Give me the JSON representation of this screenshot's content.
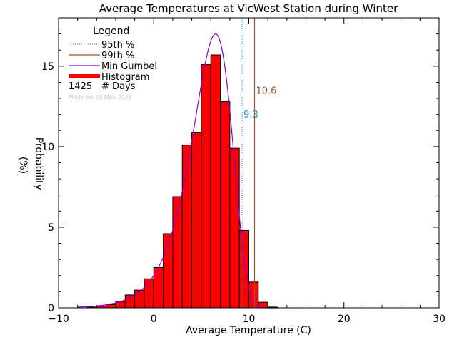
{
  "chart_data": {
    "type": "bar",
    "title": "Average Temperatures at VicWest Station during Winter",
    "xlabel": "Average Temperature (C)",
    "ylabel": "Probability\n(%)",
    "xlim": [
      -10,
      30
    ],
    "ylim": [
      0,
      18
    ],
    "xticks": [
      -10,
      0,
      10,
      20,
      30
    ],
    "yticks": [
      0,
      5,
      10,
      15
    ],
    "bin_width": 1,
    "bins": [
      {
        "x0": -7,
        "value": 0.05
      },
      {
        "x0": -6,
        "value": 0.1
      },
      {
        "x0": -5,
        "value": 0.2
      },
      {
        "x0": -4,
        "value": 0.4
      },
      {
        "x0": -3,
        "value": 0.8
      },
      {
        "x0": -2,
        "value": 1.1
      },
      {
        "x0": -1,
        "value": 1.8
      },
      {
        "x0": 0,
        "value": 2.5
      },
      {
        "x0": 1,
        "value": 4.6
      },
      {
        "x0": 2,
        "value": 6.9
      },
      {
        "x0": 3,
        "value": 10.1
      },
      {
        "x0": 4,
        "value": 10.9
      },
      {
        "x0": 5,
        "value": 15.1
      },
      {
        "x0": 6,
        "value": 15.7
      },
      {
        "x0": 7,
        "value": 12.8
      },
      {
        "x0": 8,
        "value": 9.9
      },
      {
        "x0": 9,
        "value": 4.8
      },
      {
        "x0": 10,
        "value": 1.6
      },
      {
        "x0": 11,
        "value": 0.35
      },
      {
        "x0": 12,
        "value": 0.05
      }
    ],
    "gumbel": {
      "mode": 6.5,
      "scale": 2.1,
      "peak": 17.0,
      "color": "#8a00d4"
    },
    "p95": {
      "value": 9.3,
      "label": "9.3",
      "color": "#1a8fd6"
    },
    "p99": {
      "value": 10.6,
      "label": "10.6",
      "color": "#a0522d"
    },
    "hist_color": "#ff0000",
    "legend": {
      "title": "Legend",
      "items": [
        "95th %",
        "99th %",
        "Min Gumbel",
        "Histogram"
      ],
      "count": "1425",
      "count_label": "# Days",
      "footnote": "Made on 29 May 2025"
    }
  }
}
